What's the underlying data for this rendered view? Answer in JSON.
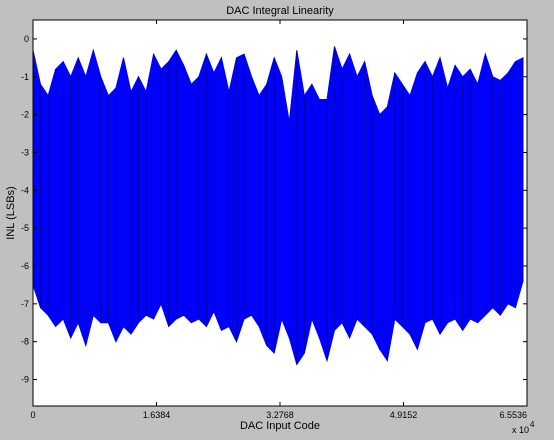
{
  "chart_data": {
    "type": "line",
    "title": "DAC Integral Linearity",
    "xlabel": "DAC Input Code",
    "ylabel": "INL (LSBs)",
    "x_tick_labels": [
      "0",
      "1.6384",
      "3.2768",
      "4.9152",
      "6.5536"
    ],
    "x_ticks": [
      0,
      1.6384,
      3.2768,
      4.9152,
      6.5536
    ],
    "x_exponent_label": "x 10",
    "x_exponent_power": "4",
    "y_tick_labels": [
      "0",
      "-1",
      "-2",
      "-3",
      "-4",
      "-5",
      "-6",
      "-7",
      "-8",
      "-9"
    ],
    "y_ticks": [
      0,
      -1,
      -2,
      -3,
      -4,
      -5,
      -6,
      -7,
      -8,
      -9
    ],
    "xlim": [
      0,
      6.5536
    ],
    "ylim": [
      -9.7,
      0.5
    ],
    "grid": false,
    "series": [
      {
        "color": "#0000ff",
        "x": [
          0.0,
          0.1,
          0.2,
          0.3,
          0.4,
          0.5,
          0.6,
          0.7,
          0.8,
          0.9,
          1.0,
          1.1,
          1.2,
          1.3,
          1.4,
          1.5,
          1.6,
          1.7,
          1.8,
          1.9,
          2.0,
          2.1,
          2.2,
          2.3,
          2.4,
          2.5,
          2.6,
          2.7,
          2.8,
          2.9,
          3.0,
          3.1,
          3.2,
          3.3,
          3.4,
          3.5,
          3.6,
          3.7,
          3.8,
          3.9,
          4.0,
          4.1,
          4.2,
          4.3,
          4.4,
          4.5,
          4.6,
          4.7,
          4.8,
          4.9,
          5.0,
          5.1,
          5.2,
          5.3,
          5.4,
          5.5,
          5.6,
          5.7,
          5.8,
          5.9,
          6.0,
          6.1,
          6.2,
          6.3,
          6.4,
          6.5
        ],
        "upper": [
          -0.3,
          -1.2,
          -1.5,
          -0.8,
          -0.6,
          -1.0,
          -0.5,
          -1.0,
          -0.3,
          -1.0,
          -1.5,
          -1.3,
          -0.5,
          -1.4,
          -1.0,
          -1.4,
          -0.4,
          -0.8,
          -0.6,
          -0.3,
          -0.7,
          -1.2,
          -1.0,
          -0.4,
          -0.9,
          -0.5,
          -1.4,
          -0.5,
          -0.4,
          -1.0,
          -1.5,
          -1.2,
          -0.5,
          -1.0,
          -2.2,
          -0.3,
          -1.5,
          -1.2,
          -1.6,
          -1.6,
          -0.2,
          -0.8,
          -0.4,
          -1.0,
          -0.6,
          -1.5,
          -2.0,
          -1.8,
          -0.9,
          -1.2,
          -1.5,
          -0.9,
          -0.6,
          -1.0,
          -0.5,
          -1.3,
          -0.7,
          -1.0,
          -0.8,
          -1.2,
          -0.4,
          -1.0,
          -1.1,
          -0.9,
          -0.6,
          -0.5
        ],
        "lower": [
          -6.5,
          -7.1,
          -7.3,
          -7.6,
          -7.4,
          -7.9,
          -7.5,
          -8.1,
          -7.3,
          -7.5,
          -7.5,
          -8.0,
          -7.6,
          -7.8,
          -7.5,
          -7.3,
          -7.4,
          -7.0,
          -7.6,
          -7.4,
          -7.3,
          -7.5,
          -7.4,
          -7.6,
          -7.2,
          -7.7,
          -7.6,
          -8.0,
          -7.4,
          -7.3,
          -7.6,
          -8.1,
          -8.3,
          -7.4,
          -7.9,
          -8.6,
          -8.3,
          -7.4,
          -7.9,
          -8.5,
          -7.7,
          -7.5,
          -7.9,
          -7.4,
          -7.6,
          -7.8,
          -8.2,
          -8.5,
          -7.4,
          -7.6,
          -7.8,
          -8.2,
          -7.5,
          -7.4,
          -7.8,
          -7.5,
          -7.4,
          -7.7,
          -7.4,
          -7.5,
          -7.3,
          -7.1,
          -7.3,
          -7.0,
          -7.1,
          -6.4
        ]
      }
    ]
  }
}
